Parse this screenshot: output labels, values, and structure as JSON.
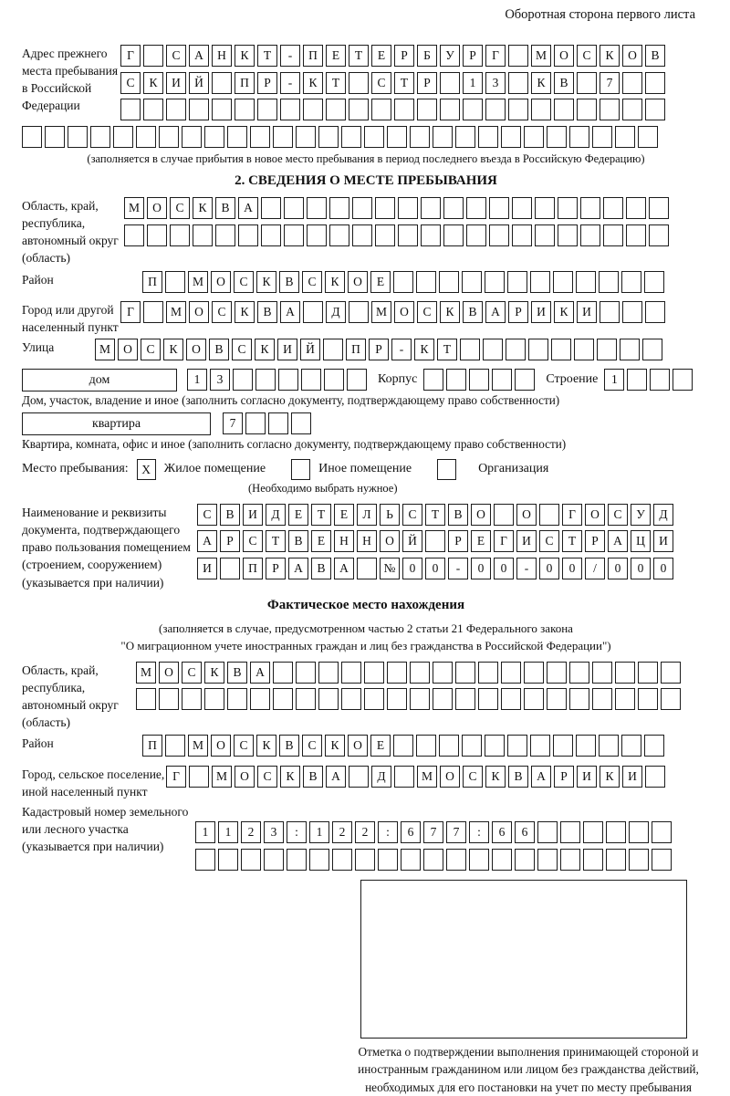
{
  "page": {
    "header_note": "Оборотная сторона первого листа"
  },
  "prev_address": {
    "label": "Адрес прежнего места пребывания в Российской Федерации",
    "rows": [
      {
        "chars": "Г САНКТ-ПЕТЕРБУРГ МОСКОВ",
        "count": 24
      },
      {
        "chars": "СКИЙ ПР-КТ СТР 13 КВ 7",
        "count": 24
      },
      {
        "chars": "",
        "count": 24
      },
      {
        "chars": "",
        "count": 28
      }
    ],
    "note": "(заполняется в случае прибытия в новое место пребывания в период последнего въезда в Российскую Федерацию)"
  },
  "section2": {
    "title": "2. СВЕДЕНИЯ О МЕСТЕ ПРЕБЫВАНИЯ",
    "oblast": {
      "label": "Область, край, республика, автономный округ (область)",
      "rows": [
        {
          "chars": "МОСКВА",
          "count": 24
        },
        {
          "chars": "",
          "count": 24
        }
      ]
    },
    "raion": {
      "label": "Район",
      "row": {
        "chars": "П МОСКВСКОЕ",
        "count": 23
      }
    },
    "city": {
      "label": "Город или другой населенный пункт",
      "row": {
        "chars": "Г МОСКВА Д МОСКВАРИКИ",
        "count": 24
      }
    },
    "street": {
      "label": "Улица",
      "row": {
        "chars": "МОСКОВСКИЙ ПР-КТ",
        "count": 25
      }
    }
  },
  "house_row": {
    "box_label": "дом",
    "cells": {
      "chars": "13",
      "count": 8
    },
    "korpus_label": "Корпус",
    "korpus_cells": {
      "chars": "",
      "count": 5
    },
    "stroenie_label": "Строение",
    "stroenie_cells": {
      "chars": "1",
      "count": 4
    },
    "caption": "Дом, участок, владение и иное (заполнить согласно документу, подтверждающему право собственности)"
  },
  "apartment_row": {
    "box_label": "квартира",
    "cells": {
      "chars": "7",
      "count": 4
    },
    "caption": "Квартира, комната, офис и иное (заполнить согласно документу, подтверждающему право собственности)"
  },
  "stay_type": {
    "label": "Место пребывания:",
    "options": [
      {
        "label": "Жилое помещение",
        "checked": "X"
      },
      {
        "label": "Иное помещение",
        "checked": ""
      },
      {
        "label": "Организация",
        "checked": ""
      }
    ],
    "note": "(Необходимо выбрать нужное)"
  },
  "doc_rights": {
    "label": "Наименование и реквизиты документа, подтверждающего право пользования помещением (строением, сооружением) (указывается при наличии)",
    "rows": [
      {
        "chars": "СВИДЕТЕЛЬСТВО О ГОСУД",
        "count": 21
      },
      {
        "chars": "АРСТВЕННОЙ РЕГИСТРАЦИ",
        "count": 21
      },
      {
        "chars": "И ПРАВА №00-00-00/000",
        "count": 21
      }
    ]
  },
  "actual_location": {
    "title": "Фактическое место нахождения",
    "note1": "(заполняется в случае, предусмотренном частью 2 статьи 21 Федерального закона",
    "note2": "\"О миграционном учете иностранных граждан и лиц без гражданства в Российской Федерации\")",
    "oblast": {
      "label": "Область, край, республика, автономный округ (область)",
      "rows": [
        {
          "chars": "МОСКВА",
          "count": 24
        },
        {
          "chars": "",
          "count": 24
        }
      ]
    },
    "raion": {
      "label": "Район",
      "row": {
        "chars": "П МОСКВСКОЕ",
        "count": 23
      }
    },
    "city": {
      "label": "Город, сельское поселение, иной населенный пункт",
      "row": {
        "chars": "Г МОСКВА Д МОСКВАРИКИ",
        "count": 22
      }
    },
    "cadastre": {
      "label": "Кадастровый номер земельного или лесного участка (указывается при наличии)",
      "rows": [
        {
          "chars": "1123:122:677:66",
          "count": 21
        },
        {
          "chars": "",
          "count": 21
        }
      ]
    }
  },
  "confirmation": {
    "caption": "Отметка о подтверждении выполнения принимающей стороной и иностранным гражданином или лицом без гражданства действий, необходимых для его постановки на учет по месту пребывания"
  }
}
